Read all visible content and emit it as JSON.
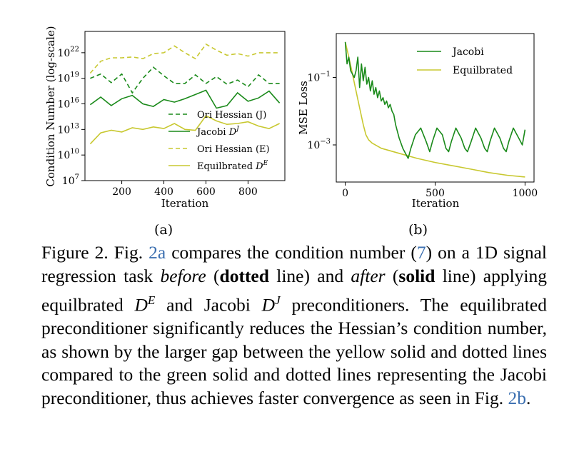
{
  "chart_data": [
    {
      "type": "line",
      "panel_label": "(a)",
      "xlabel": "Iteration",
      "ylabel": "Condition Number (log-scale)",
      "x_ticks": [
        200,
        400,
        600,
        800
      ],
      "y_ticks": [
        "10^7",
        "10^10",
        "10^13",
        "10^16",
        "10^19",
        "10^22"
      ],
      "y_scale": "log",
      "xlim": [
        25,
        975
      ],
      "ylim_log10": [
        7,
        24.5
      ],
      "legend_position": "lower-right",
      "x": [
        50,
        100,
        150,
        200,
        250,
        300,
        350,
        400,
        450,
        500,
        550,
        600,
        650,
        700,
        750,
        800,
        850,
        900,
        950
      ],
      "series": [
        {
          "name": "Ori Hessian (J)",
          "color": "#1a8a1a",
          "dash": "dashed",
          "log10_values": [
            19.0,
            19.5,
            18.5,
            19.5,
            17.3,
            19.0,
            20.3,
            19.3,
            18.4,
            18.4,
            19.4,
            18.4,
            19.2,
            18.3,
            18.8,
            18.0,
            19.4,
            18.4,
            18.4
          ]
        },
        {
          "name": "Jacobi D^J",
          "color": "#1a8a1a",
          "dash": "solid",
          "log10_values": [
            15.9,
            16.8,
            15.8,
            16.6,
            17.0,
            16.0,
            15.7,
            16.5,
            16.2,
            16.6,
            17.1,
            17.6,
            15.5,
            15.8,
            17.3,
            16.3,
            16.7,
            17.5,
            16.1
          ]
        },
        {
          "name": "Ori Hessian (E)",
          "color": "#c8c830",
          "dash": "dashed",
          "log10_values": [
            19.6,
            21.0,
            21.4,
            21.4,
            21.5,
            21.3,
            21.9,
            22.0,
            22.8,
            22.0,
            21.3,
            23.0,
            22.3,
            21.7,
            21.9,
            21.6,
            22.0,
            22.0,
            22.0
          ]
        },
        {
          "name": "Equilbrated D^E",
          "color": "#c8c830",
          "dash": "solid",
          "log10_values": [
            11.3,
            12.6,
            12.9,
            12.7,
            13.2,
            13.0,
            13.3,
            13.1,
            13.7,
            13.0,
            12.9,
            14.6,
            14.0,
            13.6,
            13.7,
            13.9,
            13.4,
            13.1,
            13.7
          ]
        }
      ]
    },
    {
      "type": "line",
      "panel_label": "(b)",
      "xlabel": "Iteration",
      "ylabel": "MSE Loss",
      "x_ticks": [
        0,
        500,
        1000
      ],
      "y_ticks": [
        "10^-1",
        "10^-3"
      ],
      "y_scale": "log",
      "xlim": [
        -50,
        1050
      ],
      "ylim_log10": [
        -4.1,
        0.3
      ],
      "legend_position": "top-right",
      "series": [
        {
          "name": "Jacobi",
          "color": "#1a8a1a",
          "dash": "solid",
          "points": [
            [
              0,
              0.05
            ],
            [
              10,
              -0.6
            ],
            [
              20,
              -0.4
            ],
            [
              30,
              -0.8
            ],
            [
              40,
              -0.9
            ],
            [
              50,
              -1.0
            ],
            [
              60,
              -0.8
            ],
            [
              70,
              -0.4
            ],
            [
              80,
              -1.3
            ],
            [
              90,
              -0.6
            ],
            [
              100,
              -1.1
            ],
            [
              110,
              -0.7
            ],
            [
              120,
              -1.2
            ],
            [
              130,
              -1.0
            ],
            [
              140,
              -1.4
            ],
            [
              150,
              -1.1
            ],
            [
              160,
              -1.5
            ],
            [
              170,
              -1.3
            ],
            [
              180,
              -1.6
            ],
            [
              190,
              -1.4
            ],
            [
              200,
              -1.7
            ],
            [
              210,
              -1.6
            ],
            [
              220,
              -1.8
            ],
            [
              230,
              -1.7
            ],
            [
              240,
              -1.9
            ],
            [
              250,
              -1.8
            ],
            [
              260,
              -2.0
            ],
            [
              270,
              -2.1
            ],
            [
              280,
              -2.4
            ],
            [
              300,
              -2.8
            ],
            [
              320,
              -3.1
            ],
            [
              340,
              -3.3
            ],
            [
              350,
              -3.4
            ],
            [
              365,
              -3.1
            ],
            [
              390,
              -2.7
            ],
            [
              420,
              -2.5
            ],
            [
              450,
              -2.9
            ],
            [
              470,
              -3.2
            ],
            [
              485,
              -2.9
            ],
            [
              510,
              -2.5
            ],
            [
              540,
              -2.7
            ],
            [
              560,
              -3.1
            ],
            [
              575,
              -3.2
            ],
            [
              590,
              -2.9
            ],
            [
              615,
              -2.5
            ],
            [
              645,
              -2.8
            ],
            [
              665,
              -3.1
            ],
            [
              680,
              -3.2
            ],
            [
              700,
              -2.9
            ],
            [
              725,
              -2.5
            ],
            [
              755,
              -2.8
            ],
            [
              775,
              -3.1
            ],
            [
              790,
              -3.2
            ],
            [
              805,
              -2.9
            ],
            [
              830,
              -2.5
            ],
            [
              860,
              -2.8
            ],
            [
              880,
              -3.1
            ],
            [
              895,
              -3.2
            ],
            [
              910,
              -2.9
            ],
            [
              935,
              -2.5
            ],
            [
              965,
              -2.8
            ],
            [
              985,
              -3.0
            ],
            [
              1000,
              -2.55
            ]
          ]
        },
        {
          "name": "Equilbrated",
          "color": "#c8c830",
          "dash": "solid",
          "points": [
            [
              0,
              0.05
            ],
            [
              20,
              -0.4
            ],
            [
              40,
              -0.9
            ],
            [
              60,
              -1.4
            ],
            [
              80,
              -1.9
            ],
            [
              100,
              -2.4
            ],
            [
              115,
              -2.7
            ],
            [
              130,
              -2.85
            ],
            [
              150,
              -2.95
            ],
            [
              200,
              -3.1
            ],
            [
              300,
              -3.25
            ],
            [
              400,
              -3.4
            ],
            [
              500,
              -3.52
            ],
            [
              600,
              -3.62
            ],
            [
              700,
              -3.72
            ],
            [
              800,
              -3.82
            ],
            [
              900,
              -3.9
            ],
            [
              1000,
              -3.95
            ]
          ]
        }
      ]
    }
  ],
  "caption": {
    "figure_label": "Figure 2.",
    "t1": " Fig. ",
    "ref_2a": "2a",
    "t2": " compares the condition number (",
    "ref_eq": "7",
    "t3": ") on a 1D signal regression task ",
    "before": "before",
    "t4": " (",
    "dotted": "dotted",
    "t5": " line) and ",
    "after": "after",
    "t6": " (",
    "solid": "solid",
    "t7": " line) applying equilbrated ",
    "de": "D",
    "de_sup": "E",
    "t8": " and Jacobi ",
    "dj": "D",
    "dj_sup": "J",
    "t9": " preconditioners. The equilibrated preconditioner significantly reduces the Hessian’s condition number, as shown by the larger gap between the yellow solid and dotted lines compared to the green solid and dotted lines representing the Jacobi preconditioner, thus achieves faster convergence as seen in Fig. ",
    "ref_2b": "2b",
    "t10": "."
  }
}
